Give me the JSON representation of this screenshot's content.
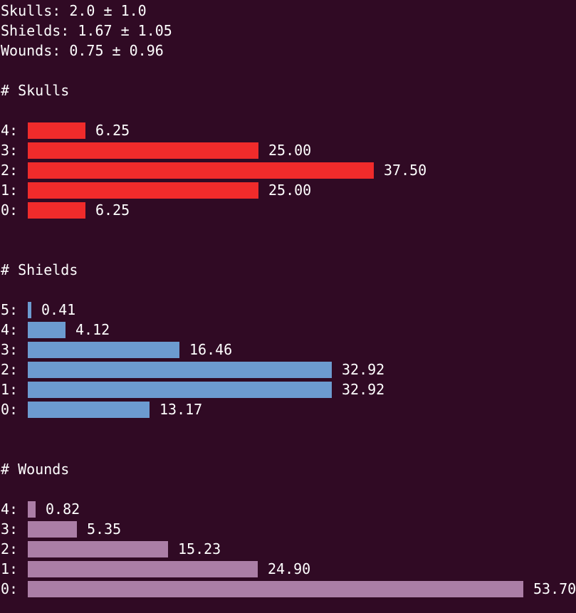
{
  "summary": [
    {
      "text": "Skulls: 2.0 ± 1.0"
    },
    {
      "text": "Shields: 1.67 ± 1.05"
    },
    {
      "text": "Wounds: 0.75 ± 0.96"
    }
  ],
  "chart_data": [
    {
      "type": "bar",
      "title": "# Skulls",
      "categories": [
        "4:",
        "3:",
        "2:",
        "1:",
        "0:"
      ],
      "values": [
        6.25,
        25.0,
        37.5,
        25.0,
        6.25
      ],
      "value_labels": [
        "6.25",
        "25.00",
        "37.50",
        "25.00",
        "6.25"
      ],
      "color": "#f02b2b"
    },
    {
      "type": "bar",
      "title": "# Shields",
      "categories": [
        "5:",
        "4:",
        "3:",
        "2:",
        "1:",
        "0:"
      ],
      "values": [
        0.41,
        4.12,
        16.46,
        32.92,
        32.92,
        13.17
      ],
      "value_labels": [
        "0.41",
        "4.12",
        "16.46",
        "32.92",
        "32.92",
        "13.17"
      ],
      "color": "#6c9bd0"
    },
    {
      "type": "bar",
      "title": "# Wounds",
      "categories": [
        "4:",
        "3:",
        "2:",
        "1:",
        "0:"
      ],
      "values": [
        0.82,
        5.35,
        15.23,
        24.9,
        53.7
      ],
      "value_labels": [
        "0.82",
        "5.35",
        "15.23",
        "24.90",
        "53.70"
      ],
      "color": "#ab7ea6"
    }
  ]
}
